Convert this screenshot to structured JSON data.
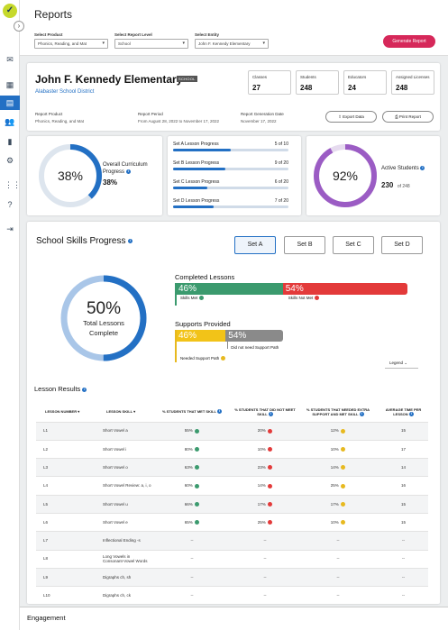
{
  "app": {
    "logo": "✓"
  },
  "sidebar": {
    "items": [
      {
        "icon": "mail-icon",
        "glyph": "✉"
      },
      {
        "icon": "dashboard-icon",
        "glyph": "▦"
      },
      {
        "icon": "reports-icon",
        "glyph": "▤"
      },
      {
        "icon": "users-icon",
        "glyph": "👥"
      },
      {
        "icon": "document-icon",
        "glyph": "▮"
      },
      {
        "icon": "settings-icon",
        "glyph": "⚙"
      },
      {
        "icon": "apps-icon",
        "glyph": "⋮⋮"
      },
      {
        "icon": "help-icon",
        "glyph": "?"
      },
      {
        "icon": "logout-icon",
        "glyph": "⇥"
      }
    ]
  },
  "header": {
    "title": "Reports",
    "filters": {
      "product": {
        "label": "Select Product",
        "value": "Phonics, Reading, and Mat"
      },
      "level": {
        "label": "Select Report Level",
        "value": "School"
      },
      "entity": {
        "label": "Select Entity",
        "value": "John F. Kennedy Elementary"
      }
    },
    "generate_label": "Generate Report"
  },
  "school": {
    "name": "John F. Kennedy Elementary",
    "badge": "SCHOOL",
    "district": "Alabaster School District",
    "stats": [
      {
        "label": "Classes",
        "value": "27"
      },
      {
        "label": "Students",
        "value": "248"
      },
      {
        "label": "Educators",
        "value": "24"
      },
      {
        "label": "Assigned Licenses",
        "value": "248"
      }
    ],
    "report_product_label": "Report Product",
    "report_product_value": "Phonics, Reading, and Mat",
    "report_period_label": "Report Period",
    "report_period_value": "From August 28, 2022 to November 17, 2022",
    "generation_date_label": "Report Generation Date",
    "generation_date_value": "November 17, 2022",
    "export_label": "Export Data",
    "print_label": "Print Report"
  },
  "overall": {
    "percent_label": "38%",
    "title": "Overall Curriculum Progress",
    "value": "38%",
    "fraction": 0.38
  },
  "sets": [
    {
      "name": "Set A Lesson Progress",
      "value": "5 of 10",
      "fraction": 0.5
    },
    {
      "name": "Set B Lesson Progress",
      "value": "9 of 20",
      "fraction": 0.45
    },
    {
      "name": "Set C Lesson Progress",
      "value": "6 of 20",
      "fraction": 0.3
    },
    {
      "name": "Set D Lesson Progress",
      "value": "7 of 20",
      "fraction": 0.35
    }
  ],
  "active": {
    "percent_label": "92%",
    "title": "Active Students",
    "count": "230",
    "of": "of 248",
    "fraction": 0.92
  },
  "skills": {
    "title": "School Skills Progress",
    "set_buttons": [
      "Set A",
      "Set B",
      "Set C",
      "Set D"
    ],
    "donut_percent": "50%",
    "donut_caption_1": "Total Lessons",
    "donut_caption_2": "Complete",
    "donut_fraction": 0.5,
    "completed_title": "Completed Lessons",
    "met_pct": "46%",
    "not_met_pct": "54%",
    "met_label": "Skills Met",
    "not_met_label": "Skills Not Met",
    "met_fraction": 0.46,
    "supports_title": "Supports Provided",
    "needed_pct": "46%",
    "not_needed_pct": "54%",
    "needed_label": "Needed Support Path",
    "not_needed_label": "Did not need Support Path",
    "needed_fraction": 0.46,
    "legend_label": "Legend"
  },
  "lesson_results": {
    "title": "Lesson Results",
    "columns": [
      "Lesson Number",
      "Lesson Skill",
      "% Students That Met Skill",
      "% Students That Did Not Meet Skill",
      "% Students That Needed Extra Support and Met Skill",
      "Average Time Per Lesson"
    ],
    "rows": [
      {
        "num": "L1",
        "skill": "Short Vowel a",
        "met": "55%",
        "not_met": "20%",
        "support": "12%",
        "time": "15"
      },
      {
        "num": "L2",
        "skill": "Short Vowel i",
        "met": "80%",
        "not_met": "10%",
        "support": "10%",
        "time": "17"
      },
      {
        "num": "L3",
        "skill": "Short Vowel o",
        "met": "63%",
        "not_met": "23%",
        "support": "14%",
        "time": "14"
      },
      {
        "num": "L4",
        "skill": "Short Vowel Review: a, i, o",
        "met": "60%",
        "not_met": "14%",
        "support": "25%",
        "time": "16"
      },
      {
        "num": "L5",
        "skill": "Short Vowel u",
        "met": "66%",
        "not_met": "17%",
        "support": "17%",
        "time": "15"
      },
      {
        "num": "L6",
        "skill": "Short Vowel e",
        "met": "65%",
        "not_met": "25%",
        "support": "10%",
        "time": "15"
      },
      {
        "num": "L7",
        "skill": "Inflectional Ending -s",
        "met": "--",
        "not_met": "--",
        "support": "--",
        "time": "--"
      },
      {
        "num": "L8",
        "skill": "Long Vowels in Consonant-Vowel Words",
        "met": "--",
        "not_met": "--",
        "support": "--",
        "time": "--"
      },
      {
        "num": "L9",
        "skill": "Digraphs ch, sh",
        "met": "--",
        "not_met": "--",
        "support": "--",
        "time": "--"
      },
      {
        "num": "L10",
        "skill": "Digraphs ch, ck",
        "met": "--",
        "not_met": "--",
        "support": "--",
        "time": "--"
      }
    ]
  },
  "engagement": {
    "title": "Engagement"
  },
  "colors": {
    "blue": "#2370c4",
    "green": "#3b9a6e",
    "red": "#e33a3a",
    "yellow": "#e7b91f",
    "purple": "#9b5cc4",
    "pink": "#d6285a"
  }
}
